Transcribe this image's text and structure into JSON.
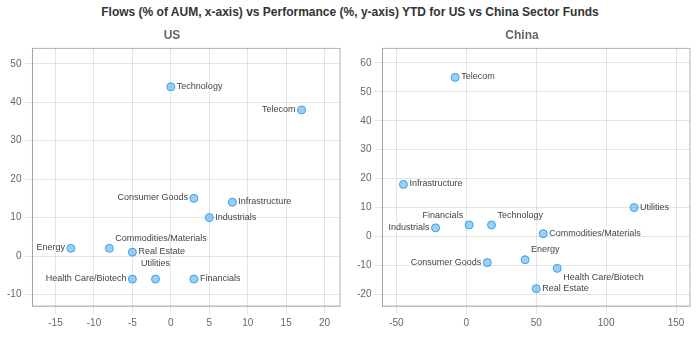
{
  "title": "Flows (% of AUM, x-axis) vs Performance (%, y-axis) YTD for US vs China Sector Funds",
  "chart_data": [
    {
      "type": "scatter",
      "title": "US",
      "x": [
        0,
        17,
        3,
        8,
        5,
        -8,
        -13,
        -5,
        -5,
        -2,
        3
      ],
      "values": [
        44,
        38,
        15,
        14,
        10,
        2,
        2,
        1,
        -6,
        -6,
        -6
      ],
      "annotations": [
        "Technology",
        "Telecom",
        "Consumer Goods",
        "Infrastructure",
        "Industrials",
        "Commodities/Materials",
        "Energy",
        "Real Estate",
        "Health Care/Biotech",
        "Utilities",
        "Financials"
      ],
      "xlim": [
        -18,
        22
      ],
      "ylim": [
        -13,
        54
      ],
      "xticks": [
        -15,
        -10,
        -5,
        0,
        5,
        10,
        15,
        20
      ],
      "yticks": [
        -10,
        0,
        10,
        20,
        30,
        40,
        50
      ],
      "grid": true
    },
    {
      "type": "scatter",
      "title": "China",
      "x": [
        -8,
        -45,
        120,
        2,
        18,
        -22,
        55,
        15,
        42,
        65,
        50
      ],
      "values": [
        55,
        18,
        10,
        4,
        4,
        3,
        1,
        -9,
        -8,
        -11,
        -18
      ],
      "annotations": [
        "Telecom",
        "Infrastructure",
        "Utilities",
        "Financials",
        "Technology",
        "Industrials",
        "Commodities/Materials",
        "Consumer Goods",
        "Energy",
        "Health Care/Biotech",
        "Real Estate"
      ],
      "xlim": [
        -60,
        160
      ],
      "ylim": [
        -24,
        65
      ],
      "xticks": [
        -50,
        0,
        50,
        100,
        150
      ],
      "yticks": [
        -20,
        -10,
        0,
        10,
        20,
        30,
        40,
        50,
        60
      ],
      "grid": true
    }
  ]
}
